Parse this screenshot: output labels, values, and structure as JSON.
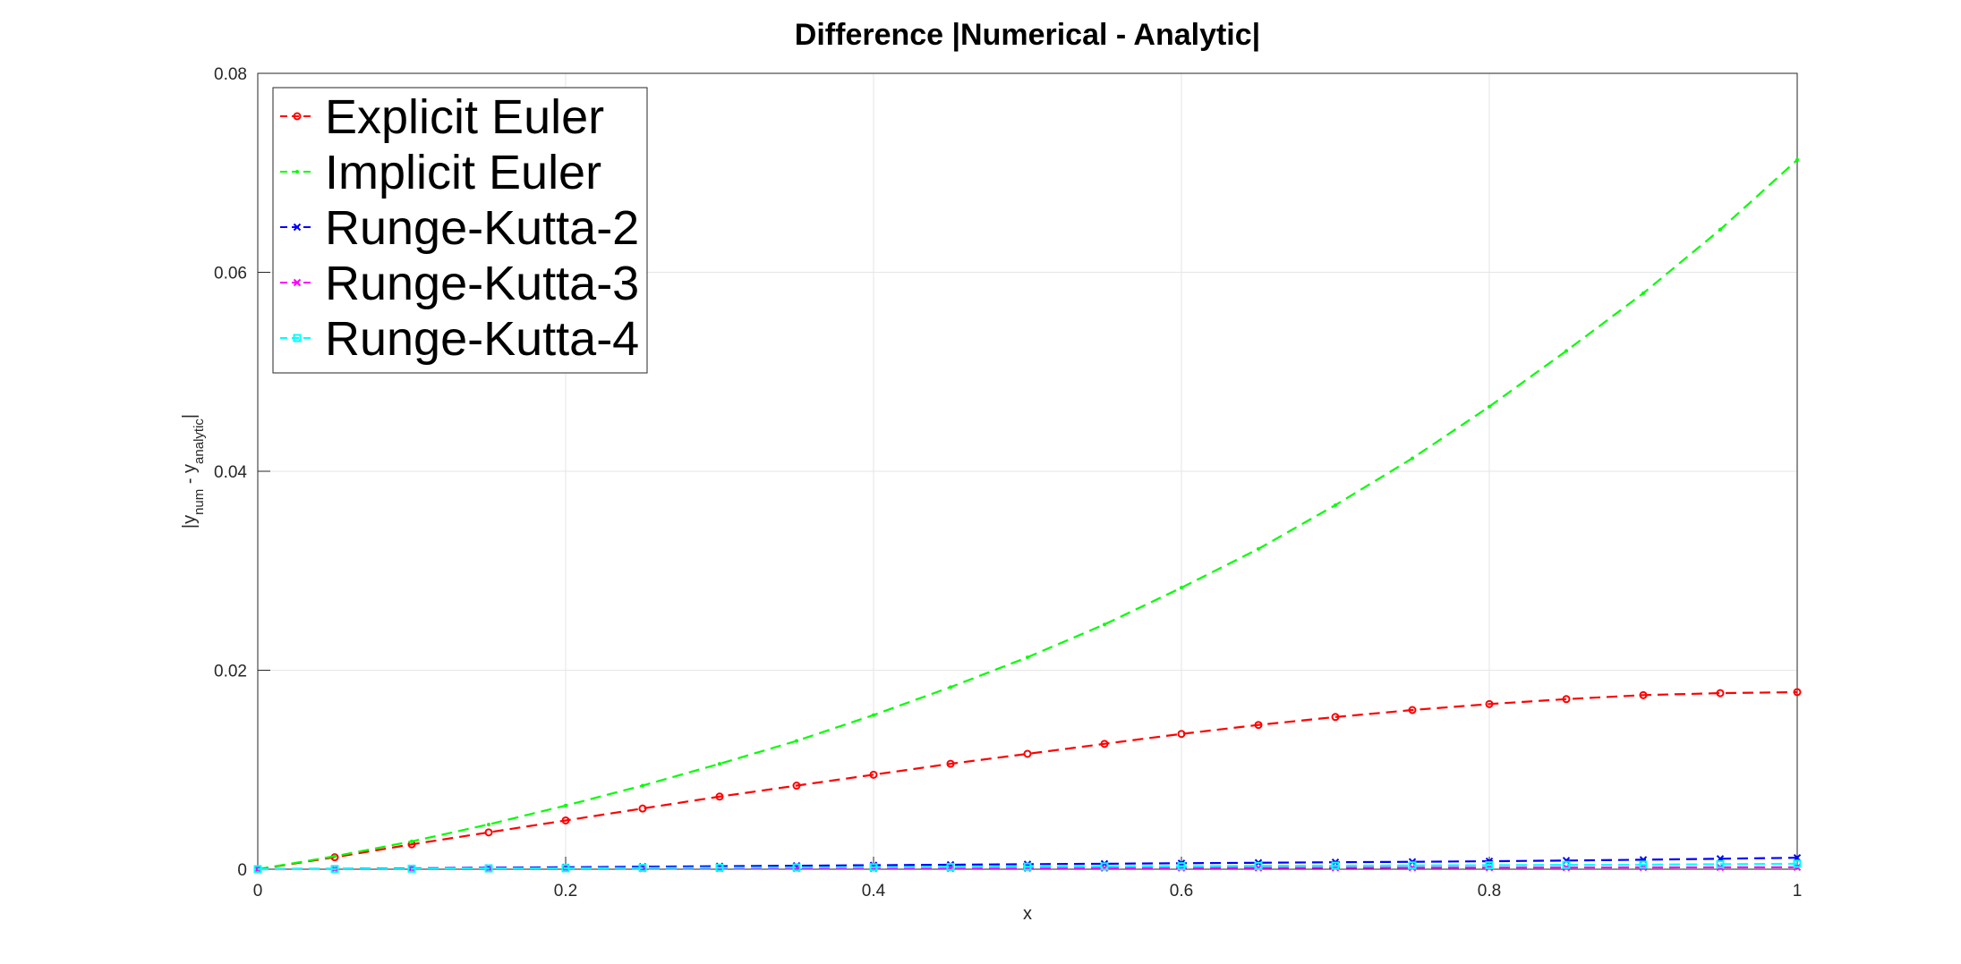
{
  "chart_data": {
    "type": "line",
    "title": "Difference |Numerical - Analytic|",
    "xlabel": "x",
    "ylabel": {
      "prefix": "|y",
      "sub1": "num",
      "middle": " - y",
      "sub2": "analytic",
      "suffix": "|"
    },
    "xlim": [
      0,
      1
    ],
    "ylim": [
      0,
      0.08
    ],
    "xticks": [
      "0",
      "0.2",
      "0.4",
      "0.6",
      "0.8",
      "1"
    ],
    "yticks": [
      "0",
      "0.02",
      "0.04",
      "0.06",
      "0.08"
    ],
    "grid": true,
    "legend_position": "top-left",
    "x": [
      0,
      0.05,
      0.1,
      0.15,
      0.2,
      0.25,
      0.3,
      0.35,
      0.4,
      0.45,
      0.5,
      0.55,
      0.6,
      0.65,
      0.7,
      0.75,
      0.8,
      0.85,
      0.9,
      0.95,
      1.0
    ],
    "series": [
      {
        "name": "Explicit Euler",
        "color": "#ff0000",
        "marker": "o",
        "values": [
          0,
          0.0012,
          0.0025,
          0.0037,
          0.0049,
          0.0061,
          0.0073,
          0.0084,
          0.0095,
          0.0106,
          0.0116,
          0.0126,
          0.0136,
          0.0145,
          0.0153,
          0.016,
          0.0166,
          0.0171,
          0.0175,
          0.0177,
          0.0178
        ]
      },
      {
        "name": "Implicit Euler",
        "color": "#00ff00",
        "marker": ".",
        "values": [
          0,
          0.0013,
          0.0028,
          0.0045,
          0.0064,
          0.0084,
          0.0106,
          0.0129,
          0.0155,
          0.0183,
          0.0213,
          0.0246,
          0.0283,
          0.0322,
          0.0366,
          0.0413,
          0.0465,
          0.0521,
          0.0579,
          0.0643,
          0.0713
        ]
      },
      {
        "name": "Runge-Kutta-2",
        "color": "#0000ff",
        "marker": "x",
        "values": [
          0,
          4e-05,
          9e-05,
          0.00014,
          0.0002,
          0.00025,
          0.0003,
          0.00035,
          0.0004,
          0.00045,
          0.0005,
          0.00055,
          0.0006,
          0.00065,
          0.0007,
          0.00075,
          0.0008,
          0.00087,
          0.00095,
          0.00105,
          0.00115
        ]
      },
      {
        "name": "Runge-Kutta-3",
        "color": "#ff00ff",
        "marker": "x",
        "values": [
          0,
          1e-05,
          2e-05,
          3e-05,
          4e-05,
          5e-05,
          6e-05,
          7e-05,
          8e-05,
          9e-05,
          0.0001,
          0.00011,
          0.00012,
          0.00013,
          0.00014,
          0.00015,
          0.00016,
          0.00017,
          0.00018,
          0.00019,
          0.0002
        ]
      },
      {
        "name": "Runge-Kutta-4",
        "color": "#00ffff",
        "marker": "s",
        "values": [
          0,
          2e-05,
          5e-05,
          8e-05,
          0.0001,
          0.00013,
          0.00015,
          0.00018,
          0.0002,
          0.00023,
          0.00025,
          0.00028,
          0.0003,
          0.00033,
          0.00035,
          0.00038,
          0.0004,
          0.00043,
          0.00046,
          0.0005,
          0.00055
        ]
      }
    ]
  }
}
